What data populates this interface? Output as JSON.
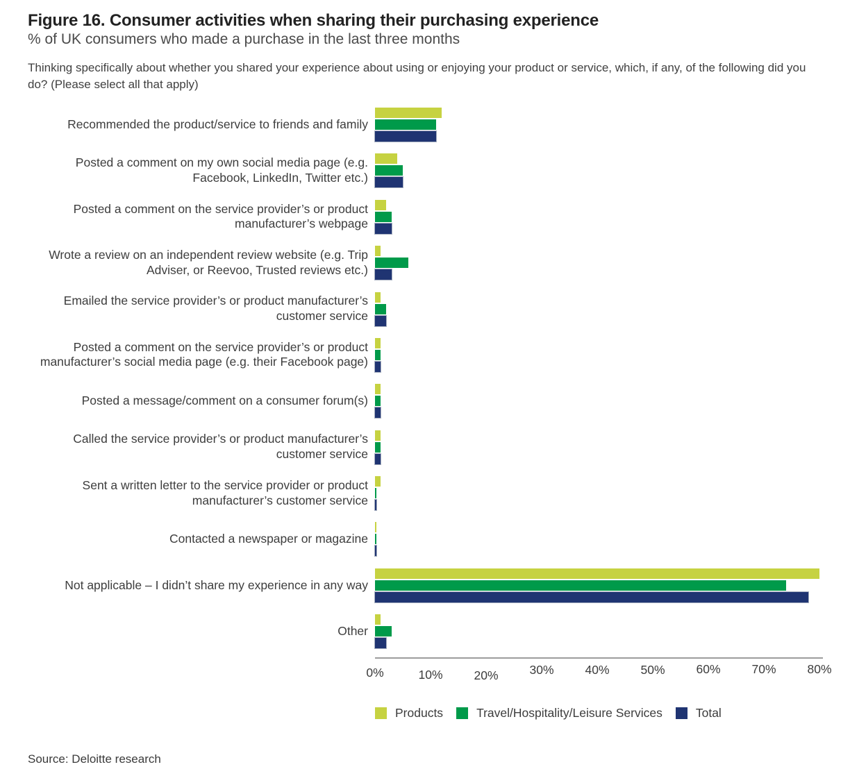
{
  "header": {
    "title": "Figure 16. Consumer activities when sharing their purchasing experience",
    "subtitle": "% of UK consumers who made a purchase in the last three months",
    "question": "Thinking specifically about whether you shared your experience about using or enjoying your product or service, which, if any, of the following did you do? (Please select all that apply)"
  },
  "chart_data": {
    "type": "bar",
    "orientation": "horizontal",
    "title": "Consumer activities when sharing their purchasing experience",
    "xlabel": "% of UK consumers",
    "ylabel": "",
    "xlim": [
      0,
      80
    ],
    "x_ticks": [
      "0%",
      "10%",
      "20%",
      "30%",
      "40%",
      "50%",
      "60%",
      "70%",
      "80%"
    ],
    "grid": false,
    "legend_position": "bottom",
    "categories": [
      "Recommended the product/service to friends and family",
      "Posted a comment on my own social media page (e.g. Facebook, LinkedIn, Twitter etc.)",
      "Posted a comment on the service provider’s or product manufacturer’s webpage",
      "Wrote a review on an independent review website (e.g. Trip Adviser, or Reevoo, Trusted reviews etc.)",
      "Emailed the service provider’s or product manufacturer’s customer service",
      "Posted a comment on the service provider’s or product manufacturer’s social media page (e.g. their Facebook page)",
      "Posted a message/comment on a consumer forum(s)",
      "Called the service provider’s or product manufacturer’s customer service",
      "Sent a written letter to the service provider or product manufacturer’s customer service",
      "Contacted a newspaper or magazine",
      "Not applicable – I didn’t share my experience in any way",
      "Other"
    ],
    "series": [
      {
        "name": "Products",
        "color": "#c6d241",
        "values": [
          12,
          4,
          2,
          1,
          1,
          1,
          1,
          1,
          1,
          0,
          80,
          1
        ]
      },
      {
        "name": "Travel/Hospitality/Leisure Services",
        "color": "#009a4a",
        "values": [
          11,
          5,
          3,
          6,
          2,
          1,
          1,
          1,
          0,
          0,
          74,
          3
        ]
      },
      {
        "name": "Total",
        "color": "#1f3472",
        "values": [
          11,
          5,
          3,
          3,
          2,
          1,
          1,
          1,
          0,
          0,
          78,
          2
        ]
      }
    ]
  },
  "footer": {
    "source": "Source: Deloitte research"
  }
}
